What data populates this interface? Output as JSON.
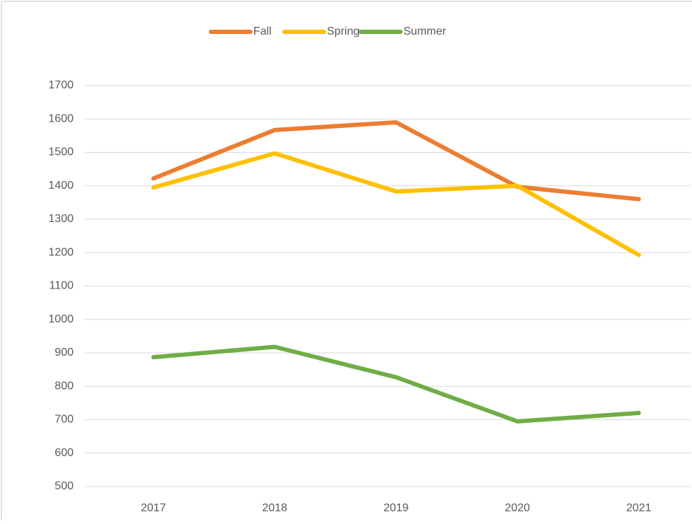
{
  "chart_data": {
    "type": "line",
    "categories": [
      "2017",
      "2018",
      "2019",
      "2020",
      "2021"
    ],
    "series": [
      {
        "name": "Fall",
        "color": "#ed7d31",
        "values": [
          1422,
          1567,
          1590,
          1397,
          1360
        ]
      },
      {
        "name": "Spring",
        "color": "#ffc000",
        "values": [
          1395,
          1497,
          1383,
          1400,
          1193
        ]
      },
      {
        "name": "Summer",
        "color": "#70ad47",
        "values": [
          887,
          918,
          827,
          695,
          720
        ]
      }
    ],
    "ylim": [
      500,
      1700
    ],
    "yticks": [
      500,
      600,
      700,
      800,
      900,
      1000,
      1100,
      1200,
      1300,
      1400,
      1500,
      1600,
      1700
    ],
    "grid": true,
    "legend": "top"
  }
}
